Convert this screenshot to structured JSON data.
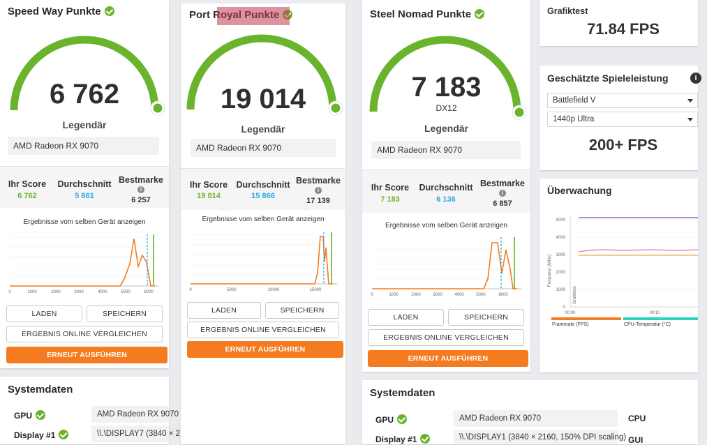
{
  "colors": {
    "accent_orange": "#f47b20",
    "gauge_green": "#6ab42d",
    "score_green": "#6ab42d",
    "average_blue": "#2aa8e0"
  },
  "cards": [
    {
      "title": "Speed Way Punkte",
      "score": "6 762",
      "sub": "",
      "rank": "Legendär",
      "device": "AMD Radeon RX 9070",
      "your_label": "Ihr Score",
      "your_value": "6 762",
      "avg_label": "Durchschnitt",
      "avg_value": "5 861",
      "best_label": "Bestmarke",
      "best_value": "6 257",
      "compare_label": "Ergebnisse vom selben Gerät anzeigen",
      "x_ticks": [
        "0",
        "1000",
        "2000",
        "3000",
        "4000",
        "5000",
        "6000"
      ],
      "btn_load": "LADEN",
      "btn_save": "SPEICHERN",
      "btn_compare": "ERGEBNIS ONLINE VERGLEICHEN",
      "btn_rerun": "ERNEUT AUSFÜHREN"
    },
    {
      "title": "Port Royal Punkte",
      "score": "19 014",
      "sub": "",
      "rank": "Legendär",
      "device": "AMD Radeon RX 9070",
      "your_label": "Ihr Score",
      "your_value": "19 014",
      "avg_label": "Durchschnitt",
      "avg_value": "15 866",
      "best_label": "Bestmarke",
      "best_value": "17 139",
      "compare_label": "Ergebnisse vom selben Gerät anzeigen",
      "x_ticks": [
        "0",
        "5000",
        "10000",
        "15000"
      ],
      "btn_load": "LADEN",
      "btn_save": "SPEICHERN",
      "btn_compare": "ERGEBNIS ONLINE VERGLEICHEN",
      "btn_rerun": "ERNEUT AUSFÜHREN"
    },
    {
      "title": "Steel Nomad Punkte",
      "score": "7 183",
      "sub": "DX12",
      "rank": "Legendär",
      "device": "AMD Radeon RX 9070",
      "your_label": "Ihr Score",
      "your_value": "7 183",
      "avg_label": "Durchschnitt",
      "avg_value": "6 136",
      "best_label": "Bestmarke",
      "best_value": "6 857",
      "compare_label": "Ergebnisse vom selben Gerät anzeigen",
      "x_ticks": [
        "0",
        "1000",
        "2000",
        "3000",
        "4000",
        "5000",
        "6000"
      ],
      "btn_load": "LADEN",
      "btn_save": "SPEICHERN",
      "btn_compare": "ERGEBNIS ONLINE VERGLEICHEN",
      "btn_rerun": "ERNEUT AUSFÜHREN"
    }
  ],
  "systemdata_left": {
    "title": "Systemdaten",
    "gpu_label": "GPU",
    "gpu_value": "AMD Radeon RX 9070",
    "display_label": "Display #1",
    "display_value": "\\\\.\\DISPLAY7 (3840 × 2"
  },
  "systemdata_right": {
    "title": "Systemdaten",
    "gpu_label": "GPU",
    "gpu_value": "AMD Radeon RX 9070",
    "display_label": "Display #1",
    "display_value": "\\\\.\\DISPLAY1 (3840 × 2160, 150% DPI scaling)",
    "cpu_label": "CPU",
    "gui_label": "GUI"
  },
  "grafiktest": {
    "title": "Grafiktest",
    "value": "71.84 FPS"
  },
  "game_perf": {
    "title": "Geschätzte Spieleleistung",
    "game": "Battlefield V",
    "preset": "1440p Ultra",
    "value": "200+ FPS"
  },
  "monitoring": {
    "title": "Überwachung",
    "y_axis_label": "Frequenz (MHz)",
    "y_ticks": [
      "5000",
      "4000",
      "3000",
      "2000",
      "1000",
      "0"
    ],
    "x_ticks": [
      "00:00",
      "00:10"
    ],
    "vertical_marker": "Grafiktest",
    "legend": [
      "Framerate (FPS)",
      "CPU-Temperatur (°C)"
    ]
  }
}
